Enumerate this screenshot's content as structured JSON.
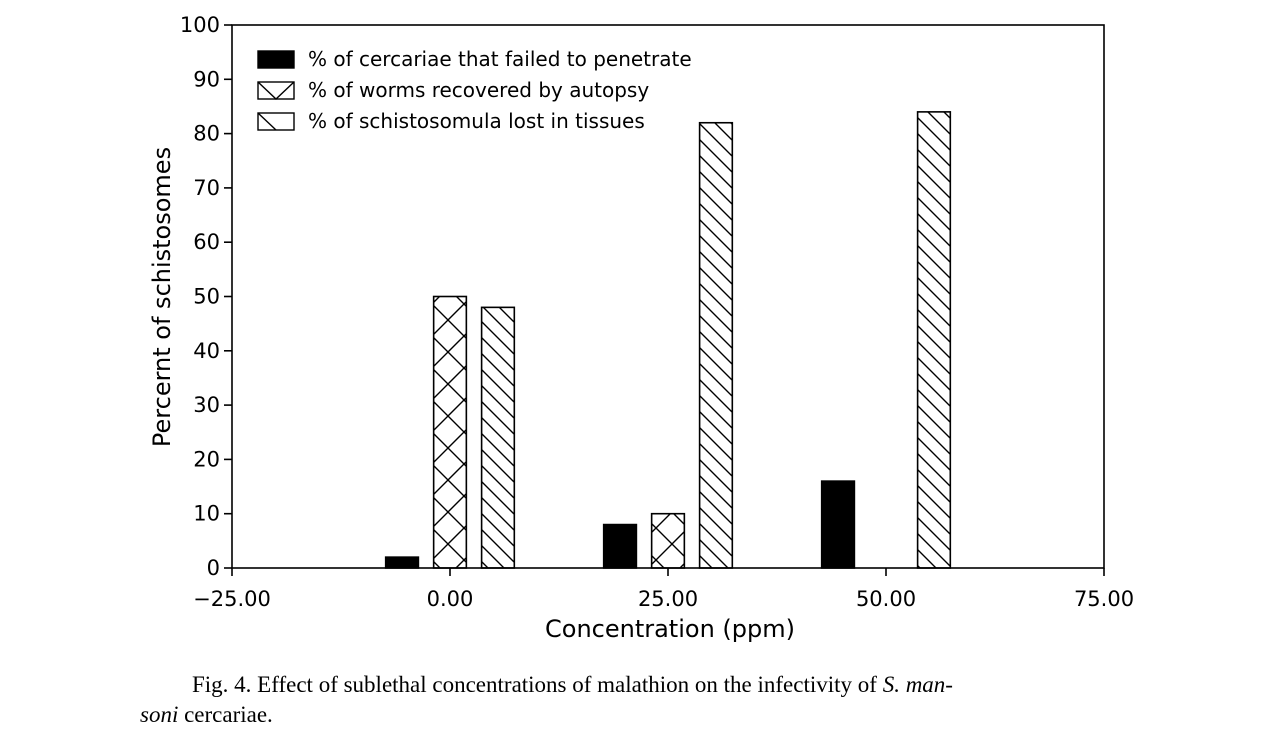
{
  "chart_data": {
    "type": "bar",
    "x_groups": [
      0,
      25,
      50
    ],
    "series": [
      {
        "name": "% of cercariae that failed to penetrate",
        "pattern": "solid",
        "offset": -5.5,
        "values": [
          2,
          8,
          16
        ]
      },
      {
        "name": "% of worms recovered by autopsy",
        "pattern": "crosshatch",
        "offset": 0,
        "values": [
          50,
          10,
          0
        ]
      },
      {
        "name": "% of schistosomula lost in tissues",
        "pattern": "diagonal",
        "offset": 5.5,
        "values": [
          48,
          82,
          84
        ]
      }
    ],
    "xlabel": "Concentration (ppm)",
    "ylabel": "Percernt of schistosomes",
    "xlim": [
      -25,
      75
    ],
    "ylim": [
      0,
      100
    ],
    "x_ticks": [
      "−25.00",
      "0.00",
      "25.00",
      "50.00",
      "75.00"
    ],
    "y_ticks": [
      "0",
      "10",
      "20",
      "30",
      "40",
      "50",
      "60",
      "70",
      "80",
      "90",
      "100"
    ],
    "legend_position": "top-left",
    "grid": false
  },
  "caption": {
    "prefix": "Fig. 4.  Effect of sublethal concentrations of malathion on the infectivity of",
    "species_1": "S. man-",
    "species_2": "soni",
    "suffix": "cercariae."
  }
}
